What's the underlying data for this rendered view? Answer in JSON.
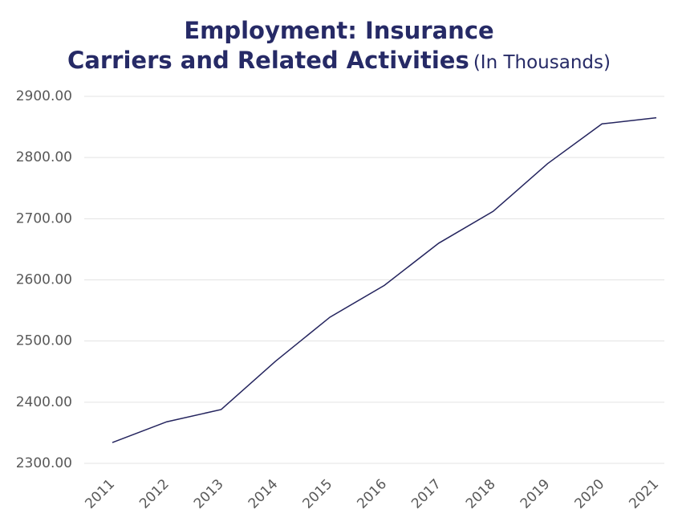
{
  "chart_data": {
    "type": "line",
    "title": [
      "Employment: Insurance",
      "Carriers and Related Activities"
    ],
    "subtitle": "(In Thousands)",
    "categories": [
      "2011",
      "2012",
      "2013",
      "2014",
      "2015",
      "2016",
      "2017",
      "2018",
      "2019",
      "2020",
      "2021"
    ],
    "series": [
      {
        "name": "Employment",
        "color": "#24245e",
        "values": [
          2334,
          2368,
          2388,
          2467,
          2539,
          2591,
          2660,
          2712,
          2790,
          2855,
          2865
        ]
      }
    ],
    "ylim": [
      2300,
      2900
    ],
    "yticks": [
      {
        "value": 2300,
        "label": "2300.00"
      },
      {
        "value": 2400,
        "label": "2400.00"
      },
      {
        "value": 2500,
        "label": "2500.00"
      },
      {
        "value": 2600,
        "label": "2600.00"
      },
      {
        "value": 2700,
        "label": "2700.00"
      },
      {
        "value": 2800,
        "label": "2800.00"
      },
      {
        "value": 2900,
        "label": "2900.00"
      }
    ],
    "grid": true
  }
}
